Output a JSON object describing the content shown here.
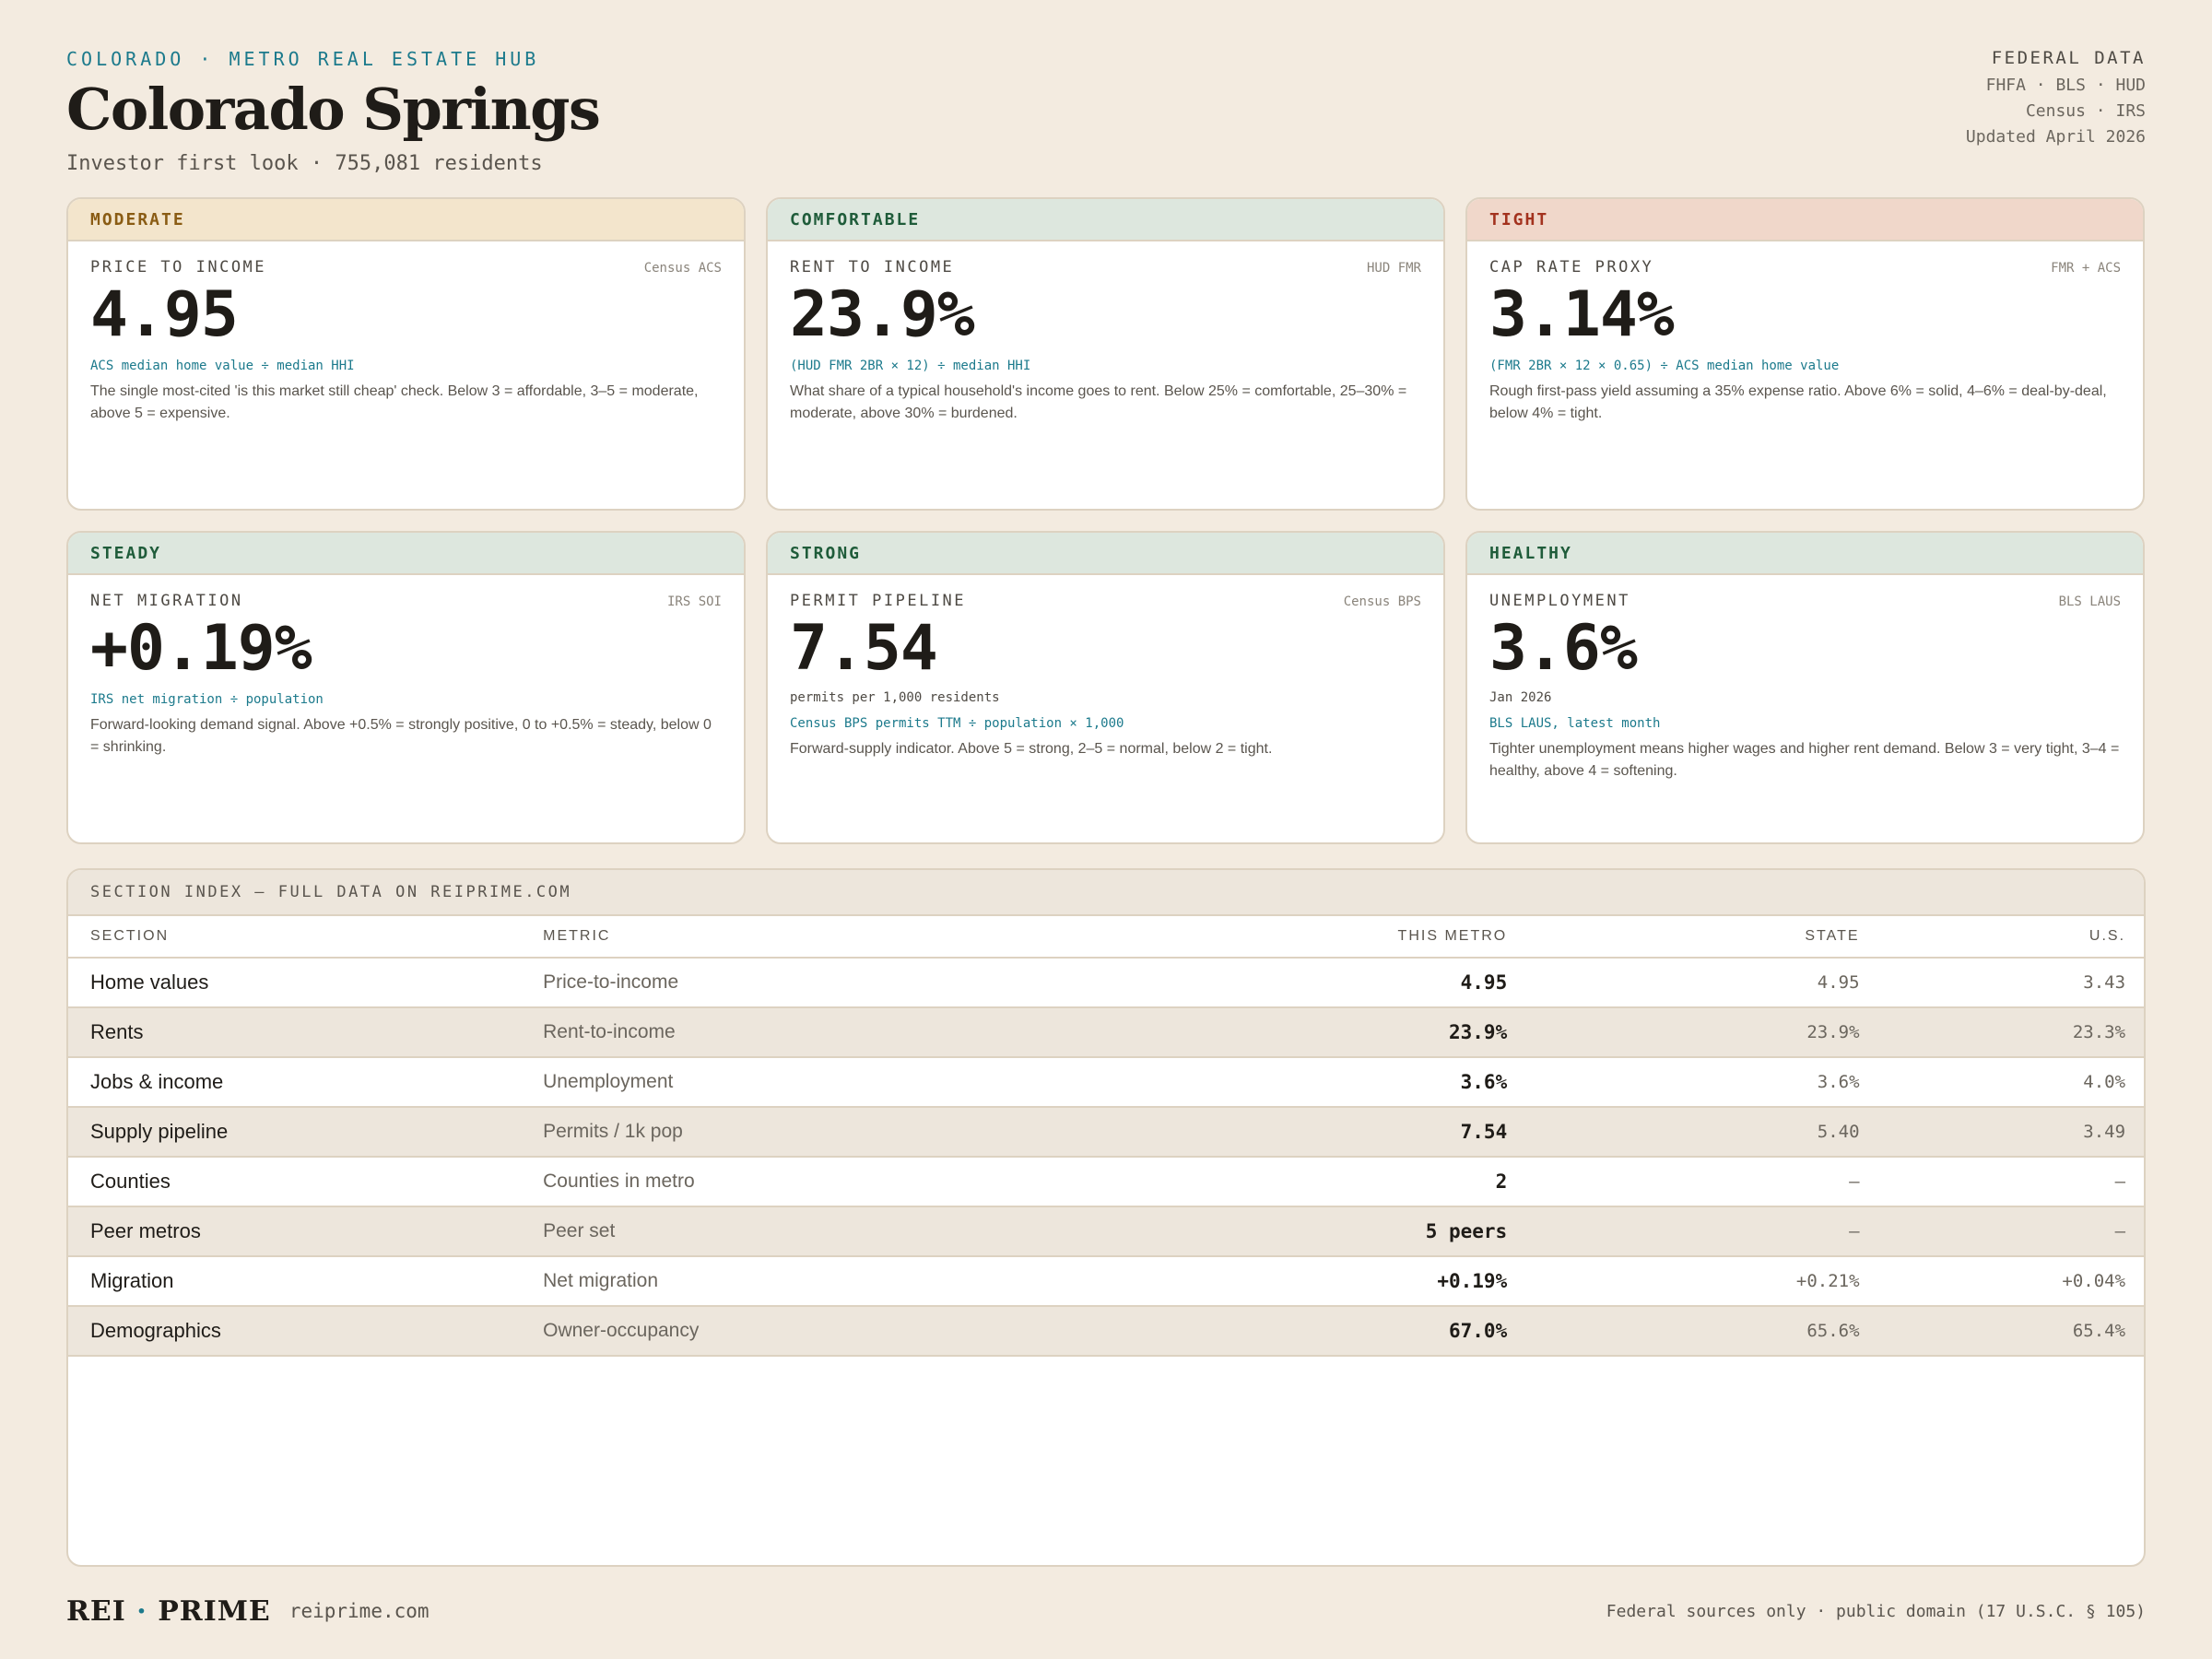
{
  "header": {
    "eyebrow": "COLORADO · METRO REAL ESTATE HUB",
    "title": "Colorado Springs",
    "subtitle": "Investor first look · 755,081 residents",
    "federal": {
      "title": "FEDERAL DATA",
      "line1": "FHFA · BLS · HUD",
      "line2": "Census · IRS",
      "updated": "Updated April 2026"
    }
  },
  "colors": {
    "accent": "#1c7a8c",
    "moderate_bg": "#f3e5cc",
    "moderate_fg": "#8a5c14",
    "comfortable_bg": "#dde7de",
    "comfortable_fg": "#1f5c3a",
    "tight_bg": "#f0d7ca",
    "tight_fg": "#a3321e"
  },
  "cards": [
    {
      "badge": "MODERATE",
      "label": "PRICE TO INCOME",
      "source": "Census ACS",
      "value": "4.95",
      "note": "",
      "formula": "ACS median home value ÷ median HHI",
      "desc": "The single most-cited 'is this market still cheap' check. Below 3 = affordable, 3–5 = moderate, above 5 = expensive."
    },
    {
      "badge": "COMFORTABLE",
      "label": "RENT TO INCOME",
      "source": "HUD FMR",
      "value": "23.9%",
      "note": "",
      "formula": "(HUD FMR 2BR × 12) ÷ median HHI",
      "desc": "What share of a typical household's income goes to rent. Below 25% = comfortable, 25–30% = moderate, above 30% = burdened."
    },
    {
      "badge": "TIGHT",
      "label": "CAP RATE PROXY",
      "source": "FMR + ACS",
      "value": "3.14%",
      "note": "",
      "formula": "(FMR 2BR × 12 × 0.65) ÷ ACS median home value",
      "desc": "Rough first-pass yield assuming a 35% expense ratio. Above 6% = solid, 4–6% = deal-by-deal, below 4% = tight."
    },
    {
      "badge": "STEADY",
      "label": "NET MIGRATION",
      "source": "IRS SOI",
      "value": "+0.19%",
      "note": "",
      "formula": "IRS net migration ÷ population",
      "desc": "Forward-looking demand signal. Above +0.5% = strongly positive, 0 to +0.5% = steady, below 0 = shrinking."
    },
    {
      "badge": "STRONG",
      "label": "PERMIT PIPELINE",
      "source": "Census BPS",
      "value": "7.54",
      "note": "permits per 1,000 residents",
      "formula": "Census BPS permits TTM ÷ population × 1,000",
      "desc": "Forward-supply indicator. Above 5 = strong, 2–5 = normal, below 2 = tight."
    },
    {
      "badge": "HEALTHY",
      "label": "UNEMPLOYMENT",
      "source": "BLS LAUS",
      "value": "3.6%",
      "note": "Jan 2026",
      "formula": "BLS LAUS, latest month",
      "desc": "Tighter unemployment means higher wages and higher rent demand. Below 3 = very tight, 3–4 = healthy, above 4 = softening."
    }
  ],
  "table": {
    "title": "SECTION INDEX — FULL DATA ON REIPRIME.COM",
    "headers": [
      "SECTION",
      "METRIC",
      "THIS METRO",
      "STATE",
      "U.S."
    ],
    "rows": [
      [
        "Home values",
        "Price-to-income",
        "4.95",
        "4.95",
        "3.43"
      ],
      [
        "Rents",
        "Rent-to-income",
        "23.9%",
        "23.9%",
        "23.3%"
      ],
      [
        "Jobs & income",
        "Unemployment",
        "3.6%",
        "3.6%",
        "4.0%"
      ],
      [
        "Supply pipeline",
        "Permits / 1k pop",
        "7.54",
        "5.40",
        "3.49"
      ],
      [
        "Counties",
        "Counties in metro",
        "2",
        "—",
        "—"
      ],
      [
        "Peer metros",
        "Peer set",
        "5 peers",
        "—",
        "—"
      ],
      [
        "Migration",
        "Net migration",
        "+0.19%",
        "+0.21%",
        "+0.04%"
      ],
      [
        "Demographics",
        "Owner-occupancy",
        "67.0%",
        "65.6%",
        "65.4%"
      ]
    ]
  },
  "footer": {
    "brand_left": "REI",
    "brand_sep": "·",
    "brand_right": "PRIME",
    "site": "reiprime.com",
    "note": "Federal sources only · public domain (17 U.S.C. § 105)"
  }
}
